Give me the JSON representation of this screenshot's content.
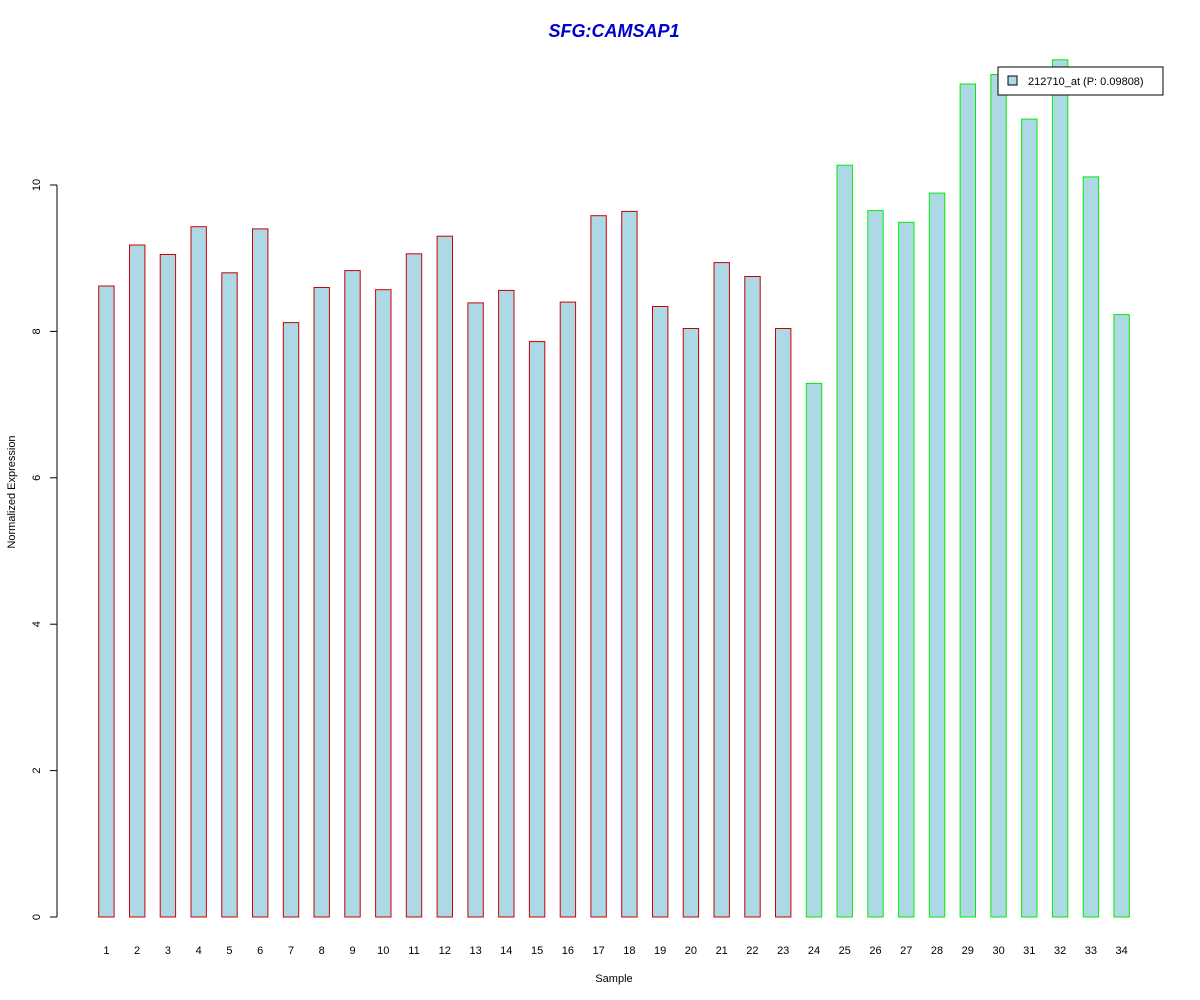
{
  "chart_data": {
    "type": "bar",
    "title": "SFG:CAMSAP1",
    "xlabel": "Sample",
    "ylabel": "Normalized Expression",
    "ylim": [
      0,
      11.7
    ],
    "y_ticks": [
      "0",
      "2",
      "4",
      "6",
      "8",
      "10"
    ],
    "categories": [
      "1",
      "2",
      "3",
      "4",
      "5",
      "6",
      "7",
      "8",
      "9",
      "10",
      "11",
      "12",
      "13",
      "14",
      "15",
      "16",
      "17",
      "18",
      "19",
      "20",
      "21",
      "22",
      "23",
      "24",
      "25",
      "26",
      "27",
      "28",
      "29",
      "30",
      "31",
      "32",
      "33",
      "34"
    ],
    "series": [
      {
        "name": "212710_at (P: 0.09808)",
        "values": [
          8.62,
          9.18,
          9.05,
          9.43,
          8.8,
          9.4,
          8.12,
          8.6,
          8.83,
          8.57,
          9.06,
          9.3,
          8.39,
          8.56,
          7.86,
          8.4,
          9.58,
          9.64,
          8.34,
          8.04,
          8.94,
          8.75,
          8.04,
          7.29,
          10.27,
          9.65,
          9.49,
          9.89,
          11.38,
          11.51,
          10.9,
          11.71,
          10.11,
          8.23
        ],
        "fill": "#add8e6",
        "group_borders": [
          "#cc0000",
          "#cc0000",
          "#cc0000",
          "#cc0000",
          "#cc0000",
          "#cc0000",
          "#cc0000",
          "#cc0000",
          "#cc0000",
          "#cc0000",
          "#cc0000",
          "#cc0000",
          "#cc0000",
          "#cc0000",
          "#cc0000",
          "#cc0000",
          "#cc0000",
          "#cc0000",
          "#cc0000",
          "#cc0000",
          "#cc0000",
          "#cc0000",
          "#cc0000",
          "#00ee00",
          "#00ee00",
          "#00ee00",
          "#00ee00",
          "#00ee00",
          "#00ee00",
          "#00ee00",
          "#00ee00",
          "#00ee00",
          "#00ee00",
          "#00ee00"
        ]
      }
    ],
    "legend": {
      "position": "top-right",
      "label": "212710_at (P: 0.09808)"
    },
    "grid": false
  },
  "colors": {
    "title": "#0000cc",
    "bar_fill": "#add8e6",
    "axis": "#000000"
  }
}
